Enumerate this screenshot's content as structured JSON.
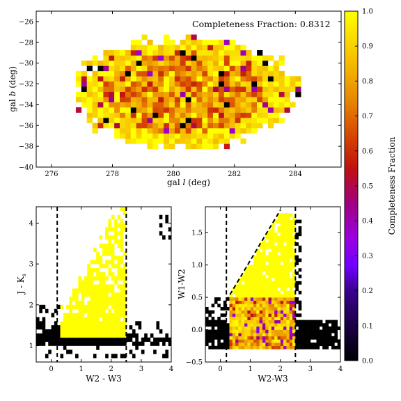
{
  "figure": {
    "colormap_name": "gnuplot"
  },
  "chart_data": [
    {
      "type": "heatmap",
      "panel": "sky",
      "xlabel": "gal l (deg)",
      "ylabel": "gal b (deg)",
      "xlabel_parts": [
        "gal ",
        "l",
        " (deg)"
      ],
      "ylabel_parts": [
        "gal ",
        "b",
        " (deg)"
      ],
      "xlim": [
        275.5,
        285.5
      ],
      "ylim": [
        -40,
        -25
      ],
      "xticks": [
        "276",
        "278",
        "280",
        "282",
        "284"
      ],
      "yticks": [
        "−40",
        "−38",
        "−36",
        "−34",
        "−32",
        "−30",
        "−28",
        "−26"
      ],
      "annotation": "Completeness Fraction: 0.8312",
      "center": [
        280.3,
        -33.1
      ],
      "extent_deg": {
        "l": [
          276.8,
          284.0
        ],
        "b": [
          -38.2,
          -27.6
        ]
      }
    },
    {
      "type": "heatmap",
      "panel": "jk-vs-w2w3",
      "xlabel": "W2 - W3",
      "ylabel_main": "J - K",
      "ylabel_sub": "s",
      "xlim": [
        -0.5,
        4
      ],
      "ylim": [
        0.6,
        4.4
      ],
      "xticks": [
        "0",
        "1",
        "2",
        "3",
        "4"
      ],
      "yticks": [
        "1",
        "2",
        "3",
        "4"
      ],
      "vlines": [
        0.2,
        2.5
      ],
      "selection": "W2-W3 between 0.2 and 2.5"
    },
    {
      "type": "heatmap",
      "panel": "w1w2-vs-w2w3",
      "xlabel": "W2-W3",
      "ylabel": "W1-W2",
      "xlim": [
        -0.5,
        4
      ],
      "ylim": [
        -0.5,
        1.9
      ],
      "xticks": [
        "0",
        "1",
        "2",
        "3",
        "4"
      ],
      "yticks": [
        "−0.5",
        "0.0",
        "0.5",
        "1.0",
        "1.5"
      ],
      "vlines": [
        0.2,
        2.5
      ],
      "diagonal": {
        "x": [
          0.2,
          2.0
        ],
        "y": [
          0.45,
          1.85
        ]
      }
    }
  ],
  "colorbar": {
    "label": "Completeness Fraction",
    "range": [
      0.0,
      1.0
    ],
    "ticks": [
      "0.0",
      "0.1",
      "0.2",
      "0.3",
      "0.4",
      "0.5",
      "0.6",
      "0.7",
      "0.8",
      "0.9",
      "1.0"
    ]
  }
}
